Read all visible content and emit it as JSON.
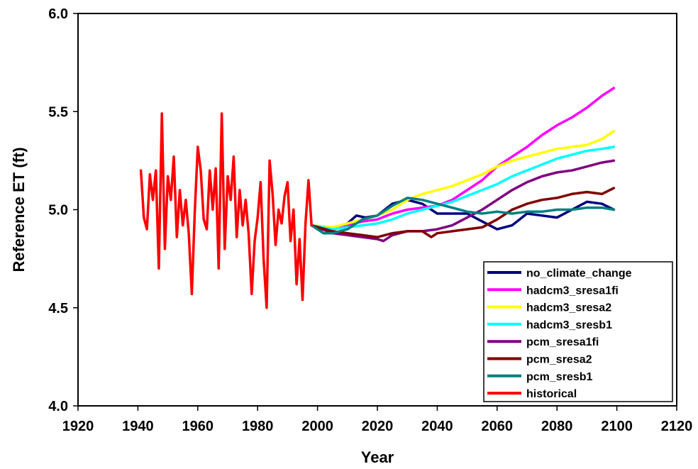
{
  "chart_data": {
    "type": "line",
    "title": "",
    "xlabel": "Year",
    "ylabel": "Reference ET (ft)",
    "xlim": [
      1920,
      2120
    ],
    "ylim": [
      4.0,
      6.0
    ],
    "x_ticks": [
      "1920",
      "1940",
      "1960",
      "1980",
      "2000",
      "2020",
      "2040",
      "2060",
      "2080",
      "2100",
      "2120"
    ],
    "y_ticks": [
      "4.0",
      "4.5",
      "5.0",
      "5.5",
      "6.0"
    ],
    "grid": false,
    "legend_position": "bottom-right",
    "series": [
      {
        "name": "no_climate_change",
        "color": "#00007f",
        "x": [
          1998,
          2005,
          2010,
          2013,
          2016,
          2020,
          2025,
          2030,
          2035,
          2040,
          2045,
          2050,
          2055,
          2060,
          2065,
          2070,
          2075,
          2080,
          2085,
          2090,
          2095,
          2099
        ],
        "y": [
          4.92,
          4.9,
          4.93,
          4.97,
          4.96,
          4.97,
          5.03,
          5.05,
          5.03,
          4.98,
          4.98,
          4.98,
          4.94,
          4.9,
          4.92,
          4.98,
          4.97,
          4.96,
          5.0,
          5.04,
          5.03,
          5.0
        ]
      },
      {
        "name": "hadcm3_sresa1fi",
        "color": "#ff00ff",
        "x": [
          1998,
          2005,
          2010,
          2015,
          2020,
          2025,
          2030,
          2035,
          2040,
          2045,
          2050,
          2055,
          2060,
          2065,
          2070,
          2075,
          2080,
          2085,
          2090,
          2095,
          2099
        ],
        "y": [
          4.92,
          4.9,
          4.92,
          4.94,
          4.95,
          4.98,
          5.0,
          5.01,
          5.02,
          5.05,
          5.1,
          5.15,
          5.22,
          5.27,
          5.32,
          5.38,
          5.43,
          5.47,
          5.52,
          5.58,
          5.62
        ]
      },
      {
        "name": "hadcm3_sresa2",
        "color": "#ffff00",
        "x": [
          1998,
          2005,
          2010,
          2015,
          2020,
          2025,
          2030,
          2035,
          2040,
          2045,
          2050,
          2055,
          2060,
          2065,
          2070,
          2075,
          2080,
          2085,
          2090,
          2095,
          2099
        ],
        "y": [
          4.92,
          4.91,
          4.93,
          4.95,
          4.97,
          5.0,
          5.05,
          5.08,
          5.1,
          5.12,
          5.15,
          5.18,
          5.22,
          5.25,
          5.27,
          5.29,
          5.31,
          5.32,
          5.33,
          5.36,
          5.4
        ]
      },
      {
        "name": "hadcm3_sresb1",
        "color": "#00ffff",
        "x": [
          1998,
          2005,
          2010,
          2015,
          2020,
          2025,
          2030,
          2035,
          2040,
          2045,
          2050,
          2055,
          2060,
          2065,
          2070,
          2075,
          2080,
          2085,
          2090,
          2095,
          2099
        ],
        "y": [
          4.92,
          4.9,
          4.91,
          4.92,
          4.93,
          4.95,
          4.98,
          5.0,
          5.02,
          5.04,
          5.07,
          5.1,
          5.13,
          5.17,
          5.2,
          5.23,
          5.26,
          5.28,
          5.3,
          5.31,
          5.32
        ]
      },
      {
        "name": "pcm_sresa1fi",
        "color": "#7f007f",
        "x": [
          1998,
          2005,
          2010,
          2015,
          2020,
          2022,
          2025,
          2030,
          2035,
          2040,
          2045,
          2050,
          2055,
          2060,
          2065,
          2070,
          2075,
          2080,
          2085,
          2090,
          2095,
          2099
        ],
        "y": [
          4.92,
          4.88,
          4.87,
          4.86,
          4.85,
          4.84,
          4.87,
          4.89,
          4.89,
          4.9,
          4.92,
          4.96,
          5.0,
          5.05,
          5.1,
          5.14,
          5.17,
          5.19,
          5.2,
          5.22,
          5.24,
          5.25
        ]
      },
      {
        "name": "pcm_sresa2",
        "color": "#7f0000",
        "x": [
          1998,
          2005,
          2010,
          2015,
          2020,
          2025,
          2030,
          2035,
          2038,
          2040,
          2045,
          2050,
          2055,
          2060,
          2065,
          2070,
          2075,
          2080,
          2085,
          2090,
          2095,
          2099
        ],
        "y": [
          4.92,
          4.89,
          4.88,
          4.87,
          4.86,
          4.88,
          4.89,
          4.89,
          4.86,
          4.88,
          4.89,
          4.9,
          4.91,
          4.95,
          5.0,
          5.03,
          5.05,
          5.06,
          5.08,
          5.09,
          5.08,
          5.11
        ]
      },
      {
        "name": "pcm_sresb1",
        "color": "#007f7f",
        "x": [
          1998,
          2002,
          2005,
          2010,
          2015,
          2020,
          2025,
          2030,
          2035,
          2040,
          2045,
          2050,
          2055,
          2060,
          2065,
          2070,
          2075,
          2080,
          2085,
          2090,
          2095,
          2099
        ],
        "y": [
          4.92,
          4.88,
          4.88,
          4.9,
          4.95,
          4.97,
          5.02,
          5.06,
          5.05,
          5.03,
          5.01,
          4.99,
          4.98,
          4.99,
          4.98,
          4.99,
          4.99,
          5.0,
          5.0,
          5.01,
          5.01,
          5.0
        ]
      },
      {
        "name": "historical",
        "color": "#ff0000",
        "x": [
          1941,
          1942,
          1943,
          1944,
          1945,
          1946,
          1947,
          1948,
          1949,
          1950,
          1951,
          1952,
          1953,
          1954,
          1955,
          1956,
          1957,
          1958,
          1959,
          1960,
          1961,
          1962,
          1963,
          1964,
          1965,
          1966,
          1967,
          1968,
          1969,
          1970,
          1971,
          1972,
          1973,
          1974,
          1975,
          1976,
          1977,
          1978,
          1979,
          1980,
          1981,
          1982,
          1983,
          1984,
          1985,
          1986,
          1987,
          1988,
          1989,
          1990,
          1991,
          1992,
          1993,
          1994,
          1995,
          1996,
          1997,
          1998
        ],
        "y": [
          5.2,
          4.96,
          4.9,
          5.18,
          5.05,
          5.2,
          4.7,
          5.49,
          4.8,
          5.17,
          5.05,
          5.27,
          4.86,
          5.1,
          4.92,
          5.05,
          4.88,
          4.57,
          4.99,
          5.32,
          5.2,
          4.95,
          4.9,
          5.2,
          5.0,
          5.21,
          4.7,
          5.49,
          4.8,
          5.17,
          5.05,
          5.27,
          4.86,
          5.1,
          4.92,
          5.05,
          4.88,
          4.57,
          4.84,
          4.96,
          5.14,
          4.75,
          4.5,
          5.25,
          5.08,
          4.82,
          5.0,
          4.93,
          5.07,
          5.14,
          4.84,
          5.0,
          4.62,
          4.85,
          4.54,
          4.93,
          5.15,
          4.92
        ]
      }
    ]
  }
}
